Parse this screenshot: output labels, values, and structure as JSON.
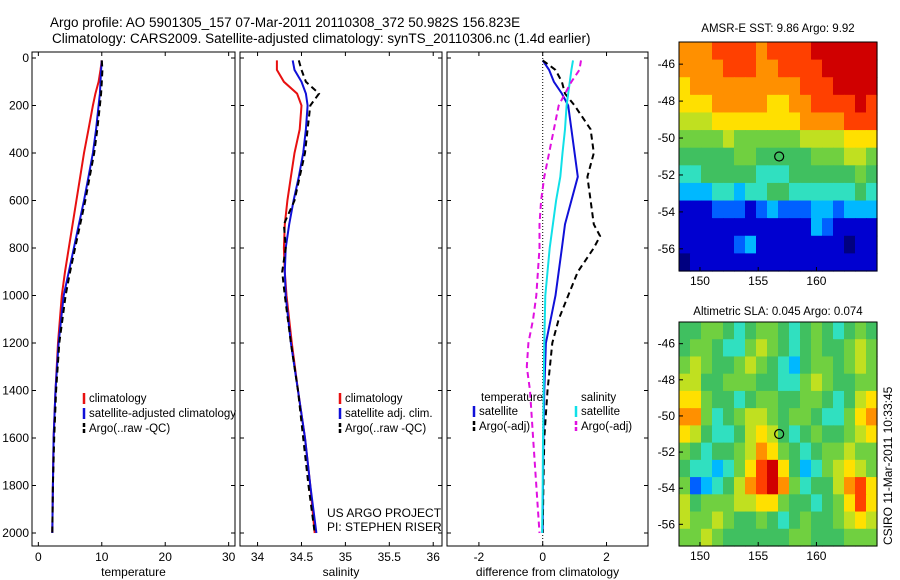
{
  "title_line1": "Argo profile: AO 5901305_157 07-Mar-2011 20110308_372 50.982S 156.823E",
  "title_line2": "Climatology: CARS2009. Satellite-adjusted climatology: synTS_20110306.nc (1.4d earlier)",
  "project_line1": "US ARGO PROJECT",
  "project_line2": "PI: STEPHEN RISER",
  "side_label": "CSIRO 11-Mar-2011 10:33:45",
  "colors": {
    "climatology": "#e81010",
    "satellite": "#1010d8",
    "argo": "#000000",
    "sal_sat": "#10e0e8",
    "sal_argo": "#e010e0"
  },
  "chart_data": [
    {
      "type": "line",
      "xlabel": "temperature",
      "xlim": [
        -1,
        31
      ],
      "ylim": [
        0,
        2060
      ],
      "xticks": [
        0,
        10,
        20,
        30
      ],
      "yticks": [
        0,
        200,
        400,
        600,
        800,
        1000,
        1200,
        1400,
        1600,
        1800,
        2000
      ],
      "y_reversed": true,
      "legend_position": "lower-right",
      "series": [
        {
          "name": "climatology",
          "color_key": "climatology",
          "dashed": false,
          "depth": [
            10,
            50,
            100,
            150,
            200,
            300,
            400,
            500,
            600,
            700,
            800,
            900,
            1000,
            1200,
            1400,
            1600,
            1800,
            2000
          ],
          "values": [
            10.0,
            9.8,
            9.5,
            9.0,
            8.6,
            7.9,
            7.2,
            6.6,
            6.0,
            5.4,
            4.8,
            4.2,
            3.7,
            3.1,
            2.7,
            2.4,
            2.3,
            2.2
          ]
        },
        {
          "name": "satellite-adjusted climatology",
          "color_key": "satellite",
          "dashed": false,
          "depth": [
            10,
            50,
            100,
            150,
            200,
            300,
            400,
            500,
            600,
            700,
            800,
            900,
            1000,
            1200,
            1400,
            1600,
            1800,
            2000
          ],
          "values": [
            10.0,
            9.9,
            9.8,
            9.7,
            9.5,
            9.1,
            8.6,
            7.9,
            7.2,
            6.4,
            5.6,
            4.8,
            4.0,
            3.2,
            2.7,
            2.4,
            2.3,
            2.2
          ]
        },
        {
          "name": "Argo(..raw -QC)",
          "color_key": "argo",
          "dashed": true,
          "depth": [
            10,
            50,
            100,
            150,
            200,
            300,
            400,
            500,
            600,
            700,
            800,
            900,
            1000,
            1200,
            1400,
            1600,
            1800,
            2000
          ],
          "values": [
            10.0,
            10.1,
            10.0,
            9.9,
            9.7,
            9.3,
            8.8,
            8.1,
            7.4,
            6.6,
            5.8,
            5.0,
            4.3,
            3.3,
            2.8,
            2.5,
            2.3,
            2.2
          ]
        }
      ]
    },
    {
      "type": "line",
      "xlabel": "salinity",
      "xlim": [
        33.8,
        36.1
      ],
      "ylim": [
        0,
        2060
      ],
      "xticks": [
        34,
        34.5,
        35,
        35.5,
        36
      ],
      "yticks": [
        0,
        200,
        400,
        600,
        800,
        1000,
        1200,
        1400,
        1600,
        1800,
        2000
      ],
      "y_reversed": true,
      "legend_position": "lower-right",
      "series": [
        {
          "name": "climatology",
          "color_key": "climatology",
          "dashed": false,
          "depth": [
            10,
            50,
            100,
            150,
            200,
            300,
            400,
            500,
            600,
            700,
            800,
            900,
            1000,
            1200,
            1400,
            1600,
            1800,
            2000
          ],
          "values": [
            34.22,
            34.22,
            34.3,
            34.45,
            34.5,
            34.48,
            34.42,
            34.38,
            34.34,
            34.31,
            34.3,
            34.31,
            34.33,
            34.39,
            34.46,
            34.54,
            34.6,
            34.65
          ]
        },
        {
          "name": "satellite adj. clim.",
          "color_key": "satellite",
          "dashed": false,
          "depth": [
            10,
            50,
            100,
            150,
            200,
            300,
            400,
            500,
            600,
            700,
            800,
            900,
            1000,
            1200,
            1400,
            1600,
            1800,
            2000
          ],
          "values": [
            34.4,
            34.42,
            34.5,
            34.55,
            34.57,
            34.55,
            34.52,
            34.47,
            34.41,
            34.36,
            34.32,
            34.31,
            34.32,
            34.38,
            34.46,
            34.54,
            34.6,
            34.67
          ]
        },
        {
          "name": "Argo(..raw -QC)",
          "color_key": "argo",
          "dashed": true,
          "depth": [
            10,
            50,
            100,
            150,
            200,
            300,
            400,
            500,
            600,
            700,
            800,
            900,
            1000,
            1200,
            1400,
            1600,
            1800,
            2000
          ],
          "values": [
            34.47,
            34.5,
            34.55,
            34.7,
            34.6,
            34.57,
            34.54,
            34.48,
            34.42,
            34.3,
            34.32,
            34.28,
            34.31,
            34.38,
            34.46,
            34.52,
            34.58,
            34.65
          ]
        }
      ]
    },
    {
      "type": "line",
      "xlabel": "difference from climatology",
      "xlim": [
        -3,
        3.3
      ],
      "ylim": [
        0,
        2060
      ],
      "xticks": [
        -2,
        0,
        2
      ],
      "yticks": [
        0,
        200,
        400,
        600,
        800,
        1000,
        1200,
        1400,
        1600,
        1800,
        2000
      ],
      "y_reversed": true,
      "zero_line": true,
      "legend_position": "lower-right",
      "legend_headers": [
        "temperature",
        "salinity"
      ],
      "series": [
        {
          "name": "satellite",
          "group": "temperature",
          "color_key": "satellite",
          "dashed": false,
          "depth": [
            10,
            50,
            100,
            150,
            200,
            300,
            400,
            500,
            600,
            700,
            800,
            900,
            1000,
            1100,
            1200,
            1400,
            1600,
            1800,
            2000
          ],
          "values": [
            0.0,
            0.2,
            0.35,
            0.6,
            0.8,
            0.9,
            1.0,
            1.1,
            0.9,
            0.7,
            0.6,
            0.5,
            0.4,
            0.25,
            0.1,
            0.05,
            0.02,
            0.01,
            0.0
          ]
        },
        {
          "name": "Argo(-adj)",
          "group": "temperature",
          "color_key": "argo",
          "dashed": true,
          "depth": [
            10,
            50,
            100,
            150,
            200,
            300,
            400,
            500,
            600,
            700,
            750,
            800,
            900,
            1000,
            1100,
            1200,
            1400,
            1600,
            1800,
            2000
          ],
          "values": [
            0.0,
            0.4,
            0.6,
            0.7,
            1.0,
            1.5,
            1.6,
            1.4,
            1.5,
            1.6,
            1.8,
            1.6,
            1.1,
            0.8,
            0.5,
            0.3,
            0.15,
            0.05,
            0.02,
            0.0
          ]
        },
        {
          "name": "satellite",
          "group": "salinity",
          "color_key": "sal_sat",
          "dashed": false,
          "depth": [
            10,
            50,
            100,
            150,
            200,
            300,
            400,
            500,
            600,
            700,
            800,
            900,
            1000,
            1200,
            1400,
            1600,
            1800,
            2000
          ],
          "values": [
            0.95,
            0.9,
            0.85,
            0.8,
            0.75,
            0.7,
            0.62,
            0.55,
            0.42,
            0.32,
            0.22,
            0.15,
            0.08,
            0.05,
            0.03,
            0.01,
            0.0,
            -0.02
          ]
        },
        {
          "name": "Argo(-adj)",
          "group": "salinity",
          "color_key": "sal_argo",
          "dashed": true,
          "depth": [
            10,
            50,
            100,
            150,
            200,
            300,
            400,
            500,
            600,
            700,
            800,
            900,
            1000,
            1100,
            1200,
            1300,
            1400,
            1600,
            1800,
            2000
          ],
          "values": [
            1.2,
            1.15,
            0.9,
            0.7,
            0.5,
            0.35,
            0.2,
            0.05,
            -0.05,
            -0.1,
            -0.1,
            -0.15,
            -0.2,
            -0.3,
            -0.45,
            -0.5,
            -0.4,
            -0.3,
            -0.2,
            -0.1
          ]
        }
      ]
    },
    {
      "type": "heatmap",
      "title": "AMSR-E SST: 9.86 Argo: 9.92",
      "xlim": [
        148.2,
        165.2
      ],
      "ylim": [
        -57.2,
        -44.8
      ],
      "xticks": [
        150,
        155,
        160
      ],
      "yticks": [
        -46,
        -48,
        -50,
        -52,
        -54,
        -56
      ],
      "marker": {
        "lon": 156.8,
        "lat": -51.0
      },
      "palette": [
        "#000080",
        "#0000d0",
        "#0060ff",
        "#00b8ff",
        "#30e0c0",
        "#40c060",
        "#70d040",
        "#c0e020",
        "#ffe000",
        "#ff9000",
        "#ff4000",
        "#d00000"
      ],
      "rows": 13,
      "cols": 18,
      "values": [
        [
          9,
          9,
          9,
          10,
          10,
          10,
          10,
          9,
          10,
          10,
          10,
          10,
          11,
          11,
          11,
          11,
          11,
          11
        ],
        [
          9,
          9,
          9,
          9,
          10,
          10,
          10,
          9,
          9,
          10,
          10,
          10,
          10,
          11,
          11,
          11,
          11,
          11
        ],
        [
          8,
          9,
          9,
          9,
          9,
          9,
          9,
          9,
          9,
          9,
          9,
          10,
          10,
          10,
          11,
          11,
          11,
          11
        ],
        [
          8,
          8,
          8,
          9,
          9,
          9,
          9,
          9,
          8,
          8,
          9,
          9,
          10,
          10,
          10,
          10,
          11,
          10
        ],
        [
          7,
          7,
          7,
          8,
          8,
          8,
          8,
          8,
          8,
          8,
          8,
          9,
          9,
          9,
          9,
          10,
          10,
          10
        ],
        [
          6,
          6,
          6,
          6,
          7,
          6,
          6,
          6,
          6,
          6,
          6,
          7,
          7,
          7,
          7,
          8,
          8,
          8
        ],
        [
          5,
          5,
          5,
          5,
          5,
          6,
          6,
          5,
          5,
          5,
          5,
          5,
          6,
          6,
          6,
          7,
          7,
          6
        ],
        [
          4,
          4,
          5,
          5,
          5,
          5,
          5,
          4,
          4,
          4,
          5,
          5,
          5,
          5,
          5,
          5,
          6,
          5
        ],
        [
          3,
          3,
          3,
          4,
          4,
          3,
          4,
          4,
          5,
          5,
          4,
          4,
          4,
          4,
          4,
          4,
          5,
          4
        ],
        [
          1,
          1,
          1,
          2,
          2,
          2,
          1,
          2,
          3,
          2,
          2,
          2,
          3,
          3,
          2,
          3,
          3,
          3
        ],
        [
          1,
          1,
          1,
          1,
          1,
          1,
          1,
          1,
          1,
          1,
          1,
          1,
          3,
          2,
          1,
          1,
          1,
          1
        ],
        [
          1,
          1,
          1,
          1,
          1,
          2,
          3,
          1,
          1,
          1,
          1,
          1,
          1,
          1,
          1,
          0,
          1,
          1
        ],
        [
          0,
          1,
          1,
          1,
          1,
          1,
          1,
          1,
          1,
          1,
          1,
          1,
          1,
          1,
          1,
          1,
          1,
          1
        ]
      ]
    },
    {
      "type": "heatmap",
      "title": "Altimetric SLA: 0.045 Argo: 0.074",
      "xlim": [
        148.2,
        165.2
      ],
      "ylim": [
        -57.2,
        -44.8
      ],
      "xticks": [
        150,
        155,
        160
      ],
      "yticks": [
        -46,
        -48,
        -50,
        -52,
        -54,
        -56
      ],
      "marker": {
        "lon": 156.8,
        "lat": -51.0
      },
      "palette": [
        "#000080",
        "#0000d0",
        "#0060ff",
        "#00b8ff",
        "#30e0c0",
        "#40c060",
        "#70d040",
        "#c0e020",
        "#ffe000",
        "#ff9000",
        "#ff4000",
        "#d00000"
      ],
      "rows": 13,
      "cols": 18,
      "values": [
        [
          5,
          5,
          6,
          6,
          5,
          4,
          5,
          6,
          6,
          5,
          4,
          5,
          6,
          5,
          4,
          5,
          6,
          5
        ],
        [
          5,
          6,
          6,
          5,
          4,
          4,
          6,
          7,
          6,
          5,
          4,
          5,
          6,
          5,
          5,
          6,
          7,
          6
        ],
        [
          6,
          7,
          6,
          5,
          5,
          6,
          7,
          6,
          5,
          4,
          3,
          5,
          6,
          6,
          5,
          6,
          7,
          6
        ],
        [
          7,
          7,
          5,
          5,
          6,
          6,
          6,
          5,
          5,
          4,
          4,
          6,
          7,
          6,
          5,
          5,
          6,
          6
        ],
        [
          8,
          8,
          6,
          5,
          5,
          4,
          5,
          6,
          6,
          5,
          5,
          6,
          6,
          5,
          4,
          5,
          7,
          8
        ],
        [
          9,
          9,
          6,
          4,
          5,
          6,
          7,
          7,
          6,
          5,
          6,
          6,
          5,
          4,
          4,
          6,
          8,
          9
        ],
        [
          8,
          7,
          5,
          4,
          4,
          5,
          7,
          8,
          7,
          5,
          4,
          5,
          6,
          5,
          5,
          6,
          7,
          8
        ],
        [
          6,
          5,
          4,
          5,
          5,
          6,
          7,
          9,
          8,
          6,
          5,
          4,
          5,
          6,
          6,
          7,
          6,
          6
        ],
        [
          5,
          4,
          4,
          3,
          4,
          6,
          8,
          10,
          11,
          8,
          5,
          3,
          4,
          6,
          7,
          8,
          7,
          6
        ],
        [
          6,
          2,
          3,
          4,
          5,
          7,
          9,
          10,
          11,
          9,
          6,
          4,
          5,
          5,
          7,
          9,
          10,
          8
        ],
        [
          7,
          5,
          6,
          6,
          6,
          7,
          7,
          8,
          8,
          6,
          5,
          5,
          4,
          5,
          6,
          8,
          10,
          8
        ],
        [
          7,
          6,
          6,
          7,
          6,
          5,
          5,
          6,
          5,
          4,
          5,
          6,
          5,
          5,
          6,
          7,
          8,
          7
        ],
        [
          6,
          6,
          7,
          6,
          5,
          5,
          5,
          5,
          5,
          5,
          6,
          6,
          5,
          5,
          5,
          6,
          6,
          6
        ]
      ]
    }
  ]
}
